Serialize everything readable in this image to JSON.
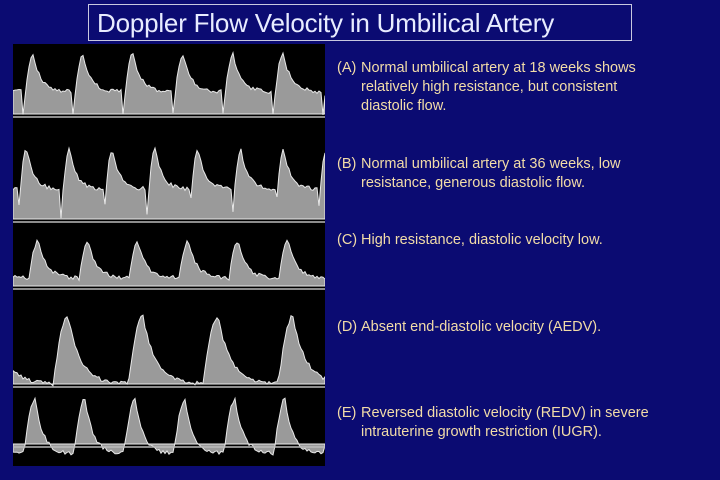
{
  "title": "Doppler Flow Velocity in Umbilical Artery",
  "colors": {
    "background": "#0b0b72",
    "text": "#f2dca8",
    "title": "#e8ecff"
  },
  "image": {
    "description_label": "doppler-waveform-strips",
    "panels": [
      "A",
      "B",
      "C",
      "D",
      "E"
    ]
  },
  "items": [
    {
      "label": "(A)",
      "text": "Normal umbilical artery at 18 weeks shows relatively high resistance, but consistent diastolic flow."
    },
    {
      "label": "(B)",
      "text": "Normal umbilical artery at 36 weeks, low resistance, generous diastolic flow."
    },
    {
      "label": "(C)",
      "text": "High resistance, diastolic velocity low."
    },
    {
      "label": "(D)",
      "text": "Absent end-diastolic velocity (AEDV)."
    },
    {
      "label": "(E)",
      "text": "Reversed diastolic velocity (REDV) in severe intrauterine growth restriction (IUGR)."
    }
  ]
}
